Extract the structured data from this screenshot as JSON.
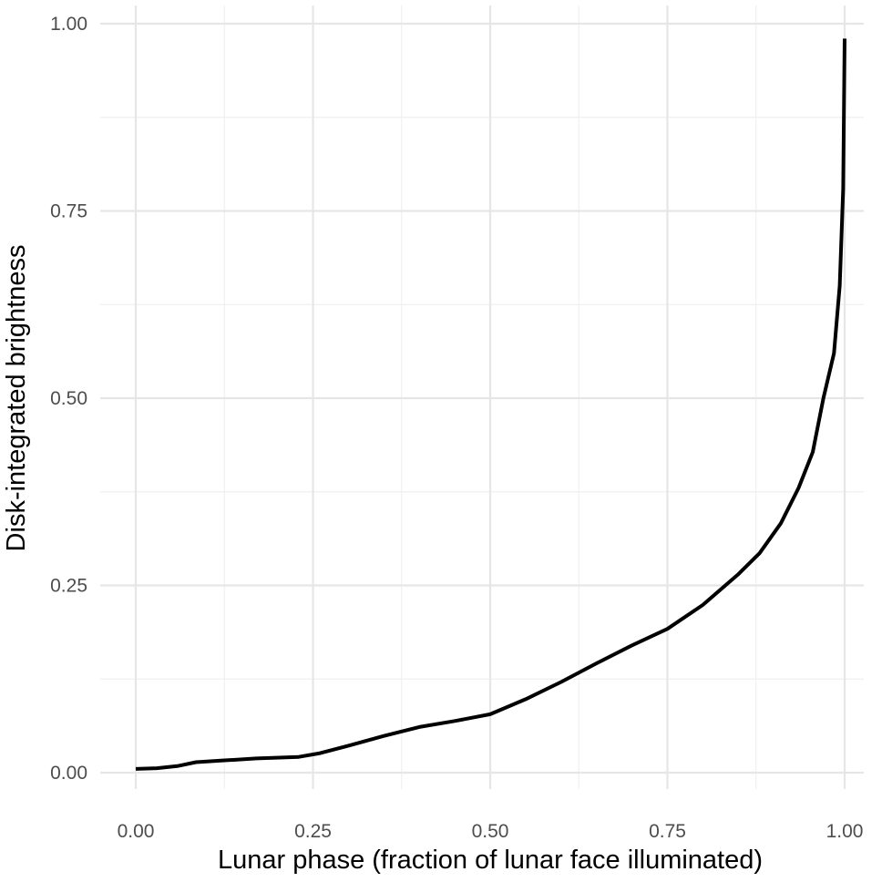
{
  "chart_data": {
    "type": "line",
    "title": "",
    "xlabel": "Lunar phase (fraction of lunar face illuminated)",
    "ylabel": "Disk-integrated brightness",
    "xlim": [
      0,
      1
    ],
    "ylim": [
      0,
      1
    ],
    "x_ticks": [
      "0.00",
      "0.25",
      "0.50",
      "0.75",
      "1.00"
    ],
    "y_ticks": [
      "0.00",
      "0.25",
      "0.50",
      "0.75",
      "1.00"
    ],
    "grid": true,
    "line_color": "#000000",
    "series": [
      {
        "x": [
          0.0,
          0.03,
          0.06,
          0.085,
          0.12,
          0.17,
          0.23,
          0.26,
          0.3,
          0.35,
          0.4,
          0.45,
          0.5,
          0.55,
          0.6,
          0.65,
          0.7,
          0.75,
          0.8,
          0.85,
          0.88,
          0.91,
          0.935,
          0.955,
          0.97,
          0.985,
          0.993,
          0.998,
          1.0
        ],
        "y": [
          0.005,
          0.006,
          0.009,
          0.014,
          0.016,
          0.019,
          0.021,
          0.026,
          0.036,
          0.049,
          0.061,
          0.069,
          0.078,
          0.098,
          0.121,
          0.146,
          0.17,
          0.192,
          0.224,
          0.265,
          0.293,
          0.333,
          0.38,
          0.428,
          0.5,
          0.56,
          0.65,
          0.78,
          0.98
        ]
      }
    ]
  }
}
